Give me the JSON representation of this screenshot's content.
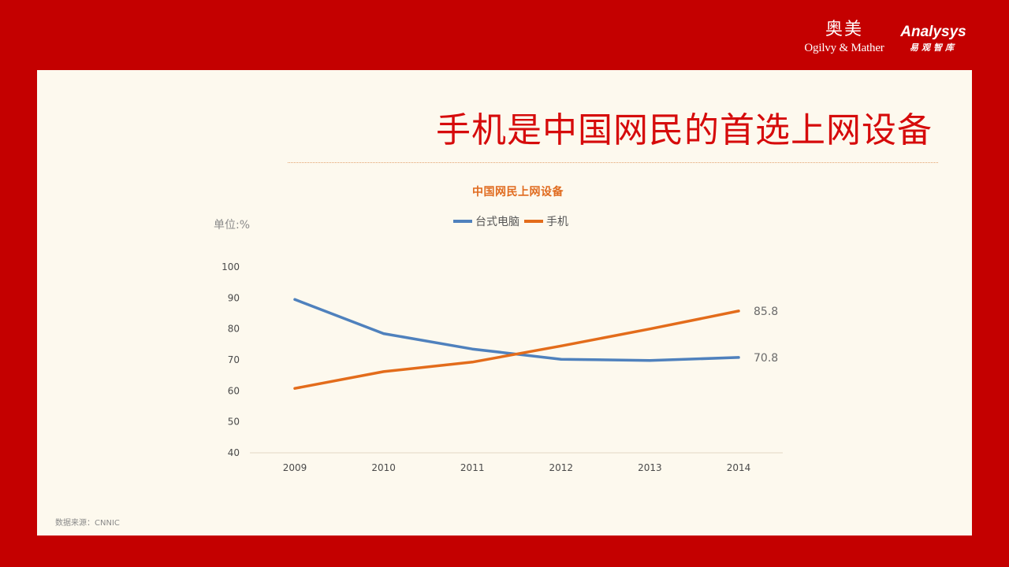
{
  "header": {
    "ogilvy_cn": "奥美",
    "ogilvy_en": "Ogilvy & Mather",
    "analysys_en": "Analysys",
    "analysys_cn": "易观智库"
  },
  "slide": {
    "title": "手机是中国网民的首选上网设备",
    "unit": "单位:%",
    "source": "数据来源：CNNIC"
  },
  "colors": {
    "background": "#c40000",
    "panel": "#fdf9ee",
    "title": "#d60b0b",
    "desktop": "#4f81bd",
    "mobile": "#e36c1b"
  },
  "chart_data": {
    "type": "line",
    "title": "中国网民上网设备",
    "x": [
      "2009",
      "2010",
      "2011",
      "2012",
      "2013",
      "2014"
    ],
    "series": [
      {
        "name": "台式电脑",
        "color": "#4f81bd",
        "values": [
          89.5,
          78.5,
          73.5,
          70.2,
          69.8,
          70.8
        ]
      },
      {
        "name": "手机",
        "color": "#e36c1b",
        "values": [
          60.8,
          66.2,
          69.3,
          74.5,
          80.0,
          85.8
        ]
      }
    ],
    "end_labels": [
      "70.8",
      "85.8"
    ],
    "yticks": [
      40,
      50,
      60,
      70,
      80,
      90,
      100
    ],
    "ylim": [
      40,
      100
    ],
    "legend": "top-center",
    "grid": false
  }
}
